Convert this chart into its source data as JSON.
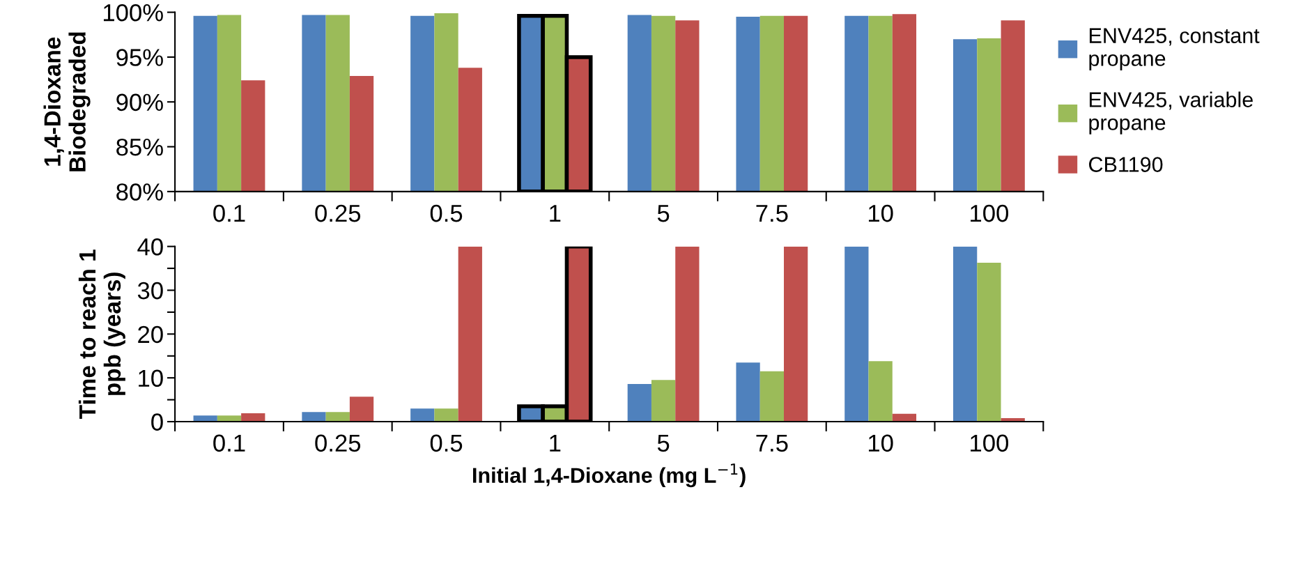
{
  "chart_data": [
    {
      "type": "bar",
      "ylabel": "1,4-Dioxane\nBiodegraded",
      "categories": [
        "0.1",
        "0.25",
        "0.5",
        "1",
        "5",
        "7.5",
        "10",
        "100"
      ],
      "series": [
        {
          "name": "ENV425, constant propane",
          "color": "#4f81bd",
          "values": [
            99.6,
            99.7,
            99.6,
            99.6,
            99.7,
            99.5,
            99.6,
            97.0
          ]
        },
        {
          "name": "ENV425, variable propane",
          "color": "#9bbb59",
          "values": [
            99.7,
            99.7,
            99.9,
            99.6,
            99.6,
            99.6,
            99.6,
            97.1
          ]
        },
        {
          "name": "CB1190",
          "color": "#c0504d",
          "values": [
            92.4,
            92.9,
            93.8,
            95.0,
            99.1,
            99.6,
            99.8,
            99.1
          ]
        }
      ],
      "ylim": [
        80,
        100
      ],
      "yticks": [
        {
          "value": 80,
          "label": "80%"
        },
        {
          "value": 85,
          "label": "85%"
        },
        {
          "value": 90,
          "label": "90%"
        },
        {
          "value": 95,
          "label": "95%"
        },
        {
          "value": 100,
          "label": "100%"
        }
      ],
      "grid": false,
      "legend": "right"
    },
    {
      "type": "bar",
      "ylabel": "Time to reach 1\nppb (years)",
      "xlabel": "Initial 1,4-Dioxane (mg L$^{−1}$)",
      "categories": [
        "0.1",
        "0.25",
        "0.5",
        "1",
        "5",
        "7.5",
        "10",
        "100"
      ],
      "series": [
        {
          "color": "#4f81bd",
          "values": [
            1.4,
            2.2,
            3.0,
            3.5,
            8.6,
            13.5,
            40,
            40
          ]
        },
        {
          "color": "#9bbb59",
          "values": [
            1.4,
            2.2,
            3.0,
            3.5,
            9.5,
            11.5,
            13.8,
            36.3
          ]
        },
        {
          "color": "#c0504d",
          "values": [
            1.9,
            5.7,
            40,
            40,
            40,
            40,
            1.8,
            0.8
          ]
        }
      ],
      "ylim": [
        0,
        40
      ],
      "yticks": [
        0,
        {
          "value": 5,
          "label": null
        },
        10,
        {
          "value": 15,
          "label": null
        },
        20,
        {
          "value": 25,
          "label": null
        },
        30,
        {
          "value": 35,
          "label": null
        },
        40
      ],
      "grid": false,
      "legend": false
    }
  ]
}
